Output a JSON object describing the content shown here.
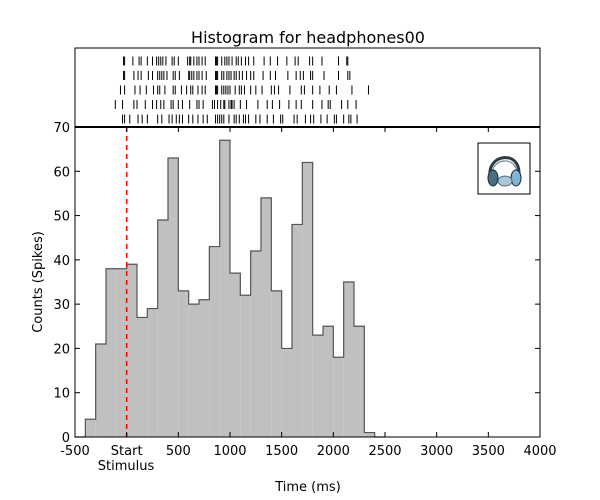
{
  "chart_data": {
    "type": "bar",
    "title": "Histogram for headphones00",
    "xlabel": "Time (ms)",
    "ylabel": "Counts (Spikes)",
    "xlim": [
      -500,
      4000
    ],
    "ylim": [
      0,
      70
    ],
    "bin_width": 100,
    "bins_start": [
      -500,
      -400,
      -300,
      -200,
      -100,
      0,
      100,
      200,
      300,
      400,
      500,
      600,
      700,
      800,
      900,
      1000,
      1100,
      1200,
      1300,
      1400,
      1500,
      1600,
      1700,
      1800,
      1900,
      2000,
      2100,
      2200,
      2300,
      2400
    ],
    "values": [
      0,
      4,
      21,
      38,
      38,
      39,
      27,
      29,
      49,
      63,
      33,
      30,
      31,
      43,
      67,
      37,
      32,
      42,
      54,
      33,
      20,
      48,
      62,
      23,
      25,
      18,
      35,
      25,
      1,
      0
    ],
    "bar_color": "#c0c0c0",
    "bar_edge_color": "#555555",
    "stimulus": {
      "x": 0,
      "label": "Stimulus",
      "color": "#ff0000"
    },
    "x_ticks": [
      {
        "value": -500,
        "label": "-500"
      },
      {
        "value": 0,
        "label": "Start"
      },
      {
        "value": 500,
        "label": "500"
      },
      {
        "value": 1000,
        "label": "1000"
      },
      {
        "value": 1500,
        "label": "1500"
      },
      {
        "value": 2000,
        "label": "2000"
      },
      {
        "value": 2500,
        "label": "2500"
      },
      {
        "value": 3000,
        "label": "3000"
      },
      {
        "value": 3500,
        "label": "3500"
      },
      {
        "value": 4000,
        "label": "4000"
      }
    ],
    "y_ticks": [
      {
        "value": 0,
        "label": "0"
      },
      {
        "value": 10,
        "label": "10"
      },
      {
        "value": 20,
        "label": "20"
      },
      {
        "value": 30,
        "label": "30"
      },
      {
        "value": 40,
        "label": "40"
      },
      {
        "value": 50,
        "label": "50"
      },
      {
        "value": 60,
        "label": "60"
      },
      {
        "value": 70,
        "label": "70"
      }
    ],
    "raster": [
      [
        -30,
        -20,
        60,
        120,
        140,
        200,
        250,
        290,
        310,
        330,
        350,
        380,
        440,
        460,
        500,
        590,
        610,
        620,
        650,
        680,
        700,
        730,
        760,
        860,
        870,
        880,
        920,
        950,
        970,
        990,
        1020,
        1060,
        1080,
        1110,
        1150,
        1180,
        1230,
        1330,
        1390,
        1460,
        1550,
        1630,
        1660,
        1770,
        1800,
        1890,
        2050,
        2130,
        2140
      ],
      [
        -30,
        -20,
        70,
        110,
        140,
        210,
        250,
        300,
        320,
        340,
        360,
        390,
        450,
        470,
        510,
        600,
        610,
        630,
        650,
        680,
        700,
        730,
        770,
        860,
        870,
        880,
        920,
        940,
        970,
        990,
        1010,
        1040,
        1060,
        1090,
        1120,
        1160,
        1200,
        1230,
        1320,
        1390,
        1440,
        1560,
        1640,
        1680,
        1710,
        1780,
        1800,
        1910,
        2050,
        2140,
        2160
      ],
      [
        -60,
        -20,
        80,
        130,
        190,
        260,
        300,
        320,
        370,
        450,
        470,
        530,
        580,
        620,
        640,
        690,
        730,
        760,
        860,
        870,
        880,
        920,
        940,
        960,
        980,
        1000,
        1050,
        1090,
        1110,
        1140,
        1200,
        1250,
        1310,
        1400,
        1430,
        1470,
        1580,
        1690,
        1720,
        1800,
        1870,
        1960,
        2030,
        2180,
        2340
      ],
      [
        -110,
        -40,
        70,
        100,
        180,
        250,
        290,
        330,
        360,
        430,
        450,
        500,
        540,
        610,
        680,
        700,
        740,
        830,
        850,
        880,
        910,
        940,
        950,
        990,
        1010,
        1020,
        1040,
        1100,
        1160,
        1270,
        1360,
        1410,
        1480,
        1570,
        1640,
        1690,
        1800,
        1890,
        1950,
        1970,
        2080,
        2140,
        2220
      ],
      [
        -40,
        -20,
        30,
        110,
        150,
        200,
        300,
        340,
        410,
        440,
        480,
        510,
        540,
        600,
        640,
        690,
        740,
        780,
        860,
        880,
        900,
        920,
        940,
        990,
        1040,
        1060,
        1090,
        1130,
        1150,
        1180,
        1250,
        1290,
        1360,
        1420,
        1490,
        1510,
        1620,
        1650,
        1730,
        1780,
        1810,
        1880,
        1940,
        2010,
        2030,
        2100,
        2150,
        2170,
        2230
      ]
    ]
  }
}
